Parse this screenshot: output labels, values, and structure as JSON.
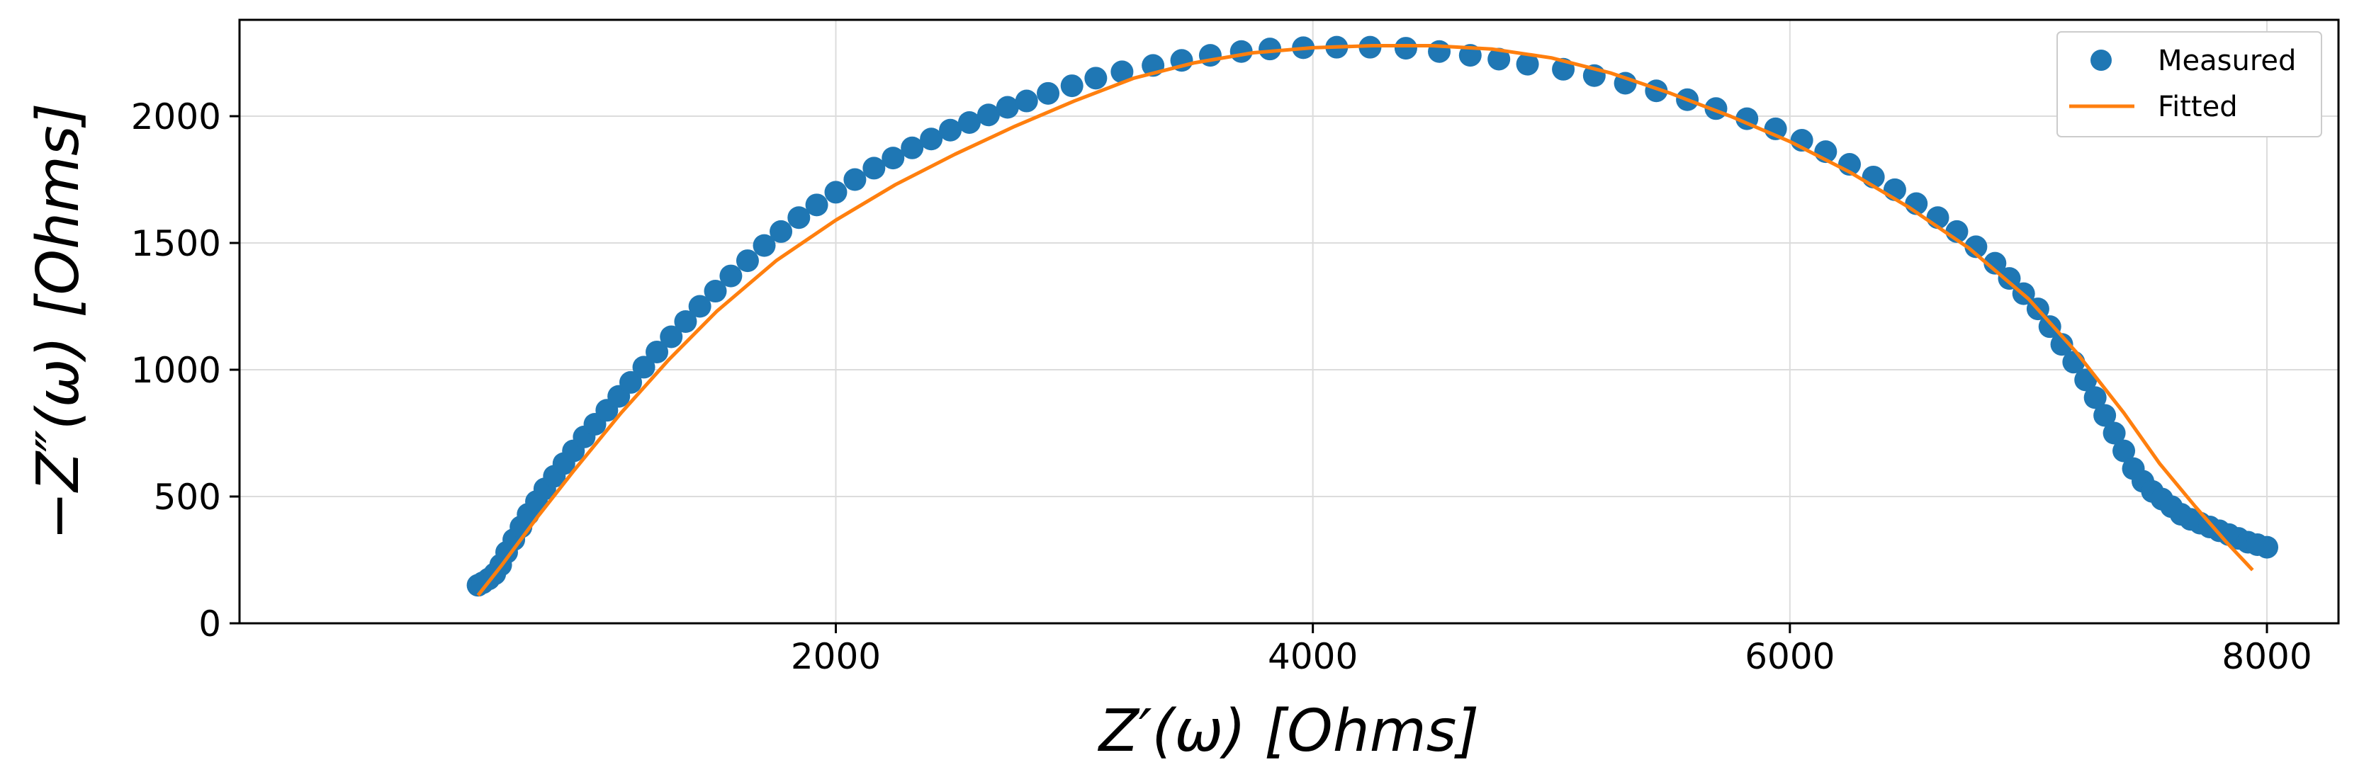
{
  "chart_data": {
    "type": "scatter",
    "title": "",
    "xlabel": "Z′(ω) [Ohms]",
    "ylabel": "−Z″(ω) [Ohms]",
    "xlim": [
      -500,
      8300
    ],
    "ylim": [
      0,
      2380
    ],
    "xticks": [
      2000,
      4000,
      6000,
      8000
    ],
    "xtick_labels": [
      "2000",
      "4000",
      "6000",
      "8000"
    ],
    "yticks": [
      0,
      500,
      1000,
      1500,
      2000
    ],
    "ytick_labels": [
      "0",
      "500",
      "1000",
      "1500",
      "2000"
    ],
    "grid": true,
    "legend_position": "top-right",
    "series": [
      {
        "name": "Measured",
        "kind": "markers",
        "color": "#1f77b4",
        "x": [
          500,
          520,
          545,
          570,
          595,
          620,
          650,
          680,
          710,
          745,
          780,
          820,
          860,
          900,
          945,
          990,
          1040,
          1090,
          1140,
          1195,
          1250,
          1310,
          1370,
          1430,
          1495,
          1560,
          1630,
          1700,
          1770,
          1845,
          1920,
          2000,
          2080,
          2160,
          2240,
          2320,
          2400,
          2480,
          2560,
          2640,
          2720,
          2800,
          2890,
          2990,
          3090,
          3200,
          3330,
          3450,
          3570,
          3700,
          3820,
          3960,
          4100,
          4240,
          4390,
          4530,
          4660,
          4780,
          4900,
          5050,
          5180,
          5310,
          5440,
          5570,
          5690,
          5820,
          5940,
          6050,
          6150,
          6250,
          6350,
          6440,
          6530,
          6620,
          6700,
          6780,
          6860,
          6920,
          6980,
          7040,
          7090,
          7140,
          7190,
          7240,
          7280,
          7320,
          7360,
          7400,
          7440,
          7480,
          7520,
          7560,
          7600,
          7640,
          7680,
          7720,
          7760,
          7800,
          7840,
          7880,
          7920,
          7960,
          8000
        ],
        "y": [
          150,
          160,
          175,
          195,
          230,
          280,
          330,
          380,
          430,
          480,
          530,
          580,
          630,
          680,
          735,
          785,
          840,
          895,
          950,
          1010,
          1070,
          1130,
          1190,
          1250,
          1310,
          1370,
          1430,
          1490,
          1545,
          1600,
          1650,
          1700,
          1750,
          1795,
          1835,
          1875,
          1910,
          1945,
          1975,
          2005,
          2035,
          2060,
          2090,
          2120,
          2150,
          2175,
          2200,
          2220,
          2240,
          2255,
          2265,
          2270,
          2272,
          2272,
          2268,
          2255,
          2240,
          2225,
          2205,
          2185,
          2160,
          2130,
          2100,
          2065,
          2030,
          1990,
          1950,
          1905,
          1860,
          1810,
          1760,
          1710,
          1655,
          1600,
          1545,
          1485,
          1420,
          1360,
          1300,
          1240,
          1170,
          1100,
          1030,
          960,
          890,
          820,
          750,
          680,
          610,
          560,
          520,
          490,
          460,
          430,
          410,
          395,
          380,
          365,
          350,
          335,
          320,
          310,
          300
        ]
      },
      {
        "name": "Fitted",
        "kind": "line",
        "color": "#ff7f0e",
        "x": [
          500,
          600,
          750,
          900,
          1100,
          1300,
          1500,
          1750,
          2000,
          2250,
          2500,
          2750,
          3000,
          3250,
          3500,
          3750,
          4000,
          4250,
          4500,
          4750,
          5000,
          5250,
          5500,
          5750,
          6000,
          6250,
          6500,
          6750,
          7000,
          7200,
          7400,
          7550,
          7700,
          7830,
          7940
        ],
        "y": [
          110,
          230,
          420,
          600,
          830,
          1040,
          1230,
          1430,
          1590,
          1730,
          1850,
          1960,
          2060,
          2150,
          2210,
          2250,
          2270,
          2278,
          2278,
          2265,
          2230,
          2170,
          2090,
          2000,
          1900,
          1780,
          1640,
          1480,
          1280,
          1070,
          830,
          630,
          460,
          320,
          210
        ]
      }
    ]
  }
}
